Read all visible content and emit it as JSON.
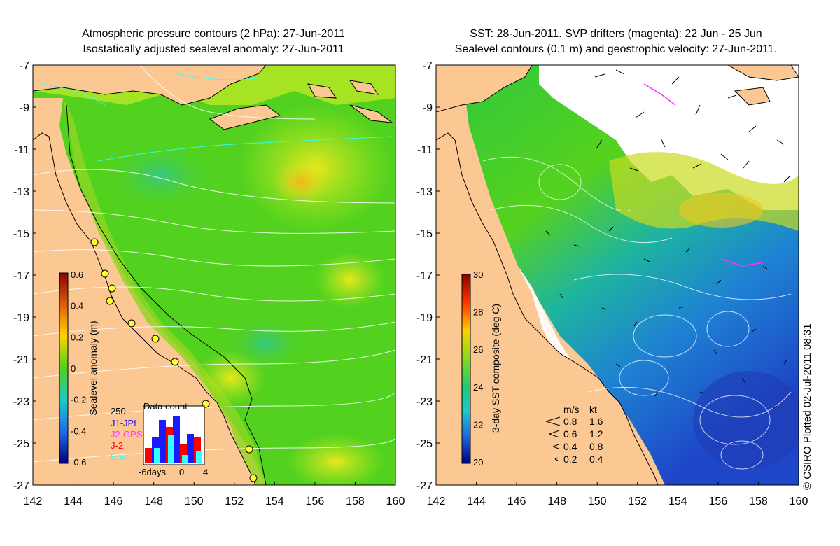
{
  "left_panel": {
    "title_line1": "Atmospheric pressure contours (2 hPa): 27-Jun-2011",
    "title_line2": "Isostatically adjusted sealevel anomaly: 27-Jun-2011",
    "y_ticks": [
      "-7",
      "-9",
      "-11",
      "-13",
      "-15",
      "-17",
      "-19",
      "-21",
      "-23",
      "-25",
      "-27"
    ],
    "x_ticks": [
      "142",
      "144",
      "146",
      "148",
      "150",
      "152",
      "154",
      "156",
      "158",
      "160"
    ],
    "colorbar": {
      "label": "Sealevel anomaly (m)",
      "ticks": [
        "0.6",
        "0.4",
        "0.2",
        "0",
        "-0.2",
        "-0.4",
        "-0.6"
      ],
      "range": [
        -0.6,
        0.6
      ]
    },
    "data_count": {
      "title": "Data count",
      "max_label": "250",
      "legend": [
        {
          "label": "J1-JPL",
          "color": "#1a1aff"
        },
        {
          "label": "J2-GPS",
          "color": "#ff33ff"
        },
        {
          "label": "J-2",
          "color": "#ff0000"
        },
        {
          "label": "Envi",
          "color": "#33ffff"
        }
      ],
      "x_labels": [
        "-6days",
        "0",
        "4"
      ]
    }
  },
  "right_panel": {
    "title_line1": "SST: 28-Jun-2011. SVP drifters (magenta): 22 Jun - 25 Jun",
    "title_line2": "Sealevel contours (0.1 m) and geostrophic velocity: 27-Jun-2011.",
    "y_ticks": [
      "-7",
      "-9",
      "-11",
      "-13",
      "-15",
      "-17",
      "-19",
      "-21",
      "-23",
      "-25",
      "-27"
    ],
    "x_ticks": [
      "142",
      "144",
      "146",
      "148",
      "150",
      "152",
      "154",
      "156",
      "158",
      "160"
    ],
    "colorbar": {
      "label": "3-day SST composite (deg C)",
      "ticks": [
        "30",
        "28",
        "26",
        "24",
        "22",
        "20"
      ],
      "range": [
        20,
        30
      ]
    },
    "velocity_legend": {
      "header_ms": "m/s",
      "header_kt": "kt",
      "rows": [
        {
          "ms": "0.8",
          "kt": "1.6"
        },
        {
          "ms": "0.6",
          "kt": "1.2"
        },
        {
          "ms": "0.4",
          "kt": "0.8"
        },
        {
          "ms": "0.2",
          "kt": "0.4"
        }
      ]
    }
  },
  "credit": "© CSIRO Plotted 02-Jul-2011 08:31",
  "colors": {
    "land": "#fbc793",
    "ocean_green": "#52d21e",
    "sst_blue": "#1a5ad6",
    "contour_white": "#ffffff",
    "contour_cyan": "#33ffff"
  }
}
